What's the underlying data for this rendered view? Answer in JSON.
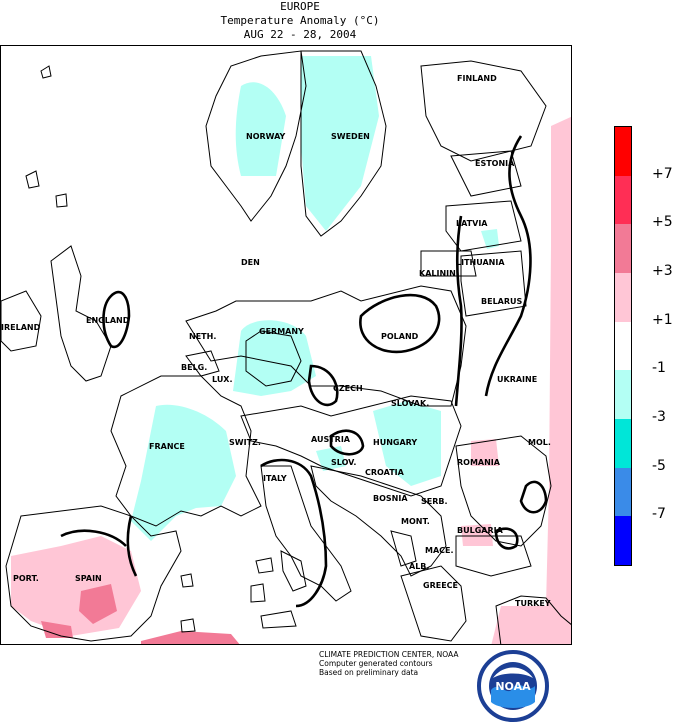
{
  "header": {
    "region": "EUROPE",
    "subtitle": "Temperature Anomaly (°C)",
    "dates": "AUG 22 - 28, 2004"
  },
  "map": {
    "countries": [
      {
        "key": "finland",
        "name": "FINLAND"
      },
      {
        "key": "norway",
        "name": "NORWAY"
      },
      {
        "key": "sweden",
        "name": "SWEDEN"
      },
      {
        "key": "estonia",
        "name": "ESTONIA"
      },
      {
        "key": "latvia",
        "name": "LATVIA"
      },
      {
        "key": "den",
        "name": "DEN"
      },
      {
        "key": "kalinin",
        "name": "KALININ"
      },
      {
        "key": "lithuania",
        "name": "LITHUANIA"
      },
      {
        "key": "ireland",
        "name": "IRELAND"
      },
      {
        "key": "england",
        "name": "ENGLAND"
      },
      {
        "key": "belarus",
        "name": "BELARUS"
      },
      {
        "key": "neth",
        "name": "NETH."
      },
      {
        "key": "germany",
        "name": "GERMANY"
      },
      {
        "key": "poland",
        "name": "POLAND"
      },
      {
        "key": "belg",
        "name": "BELG."
      },
      {
        "key": "lux",
        "name": "LUX."
      },
      {
        "key": "czech",
        "name": "CZECH"
      },
      {
        "key": "ukraine",
        "name": "UKRAINE"
      },
      {
        "key": "slovak",
        "name": "SLOVAK."
      },
      {
        "key": "france",
        "name": "FRANCE"
      },
      {
        "key": "switz",
        "name": "SWITZ."
      },
      {
        "key": "austria",
        "name": "AUSTRIA"
      },
      {
        "key": "hungary",
        "name": "HUNGARY"
      },
      {
        "key": "mol",
        "name": "MOL."
      },
      {
        "key": "romania",
        "name": "ROMANIA"
      },
      {
        "key": "sloven",
        "name": "SLOV."
      },
      {
        "key": "croatia",
        "name": "CROATIA"
      },
      {
        "key": "italy",
        "name": "ITALY"
      },
      {
        "key": "bosnia",
        "name": "BOSNIA"
      },
      {
        "key": "serb",
        "name": "SERB."
      },
      {
        "key": "mont",
        "name": "MONT."
      },
      {
        "key": "bulgaria",
        "name": "BULGARIA"
      },
      {
        "key": "mace",
        "name": "MACE."
      },
      {
        "key": "alb",
        "name": "ALB."
      },
      {
        "key": "port",
        "name": "PORT."
      },
      {
        "key": "spain",
        "name": "SPAIN"
      },
      {
        "key": "greece",
        "name": "GREECE"
      },
      {
        "key": "turkey",
        "name": "TURKEY"
      }
    ]
  },
  "legend": {
    "colors": [
      "#ff0000",
      "#ff2e55",
      "#f27a96",
      "#ffc6d6",
      "#ffffff",
      "#b3fff4",
      "#00e6d8",
      "#3a8be8",
      "#0000ff"
    ],
    "ticks": [
      "+7",
      "+5",
      "+3",
      "+1",
      "-1",
      "-3",
      "-5",
      "-7"
    ]
  },
  "credits": {
    "line1": "CLIMATE PREDICTION CENTER, NOAA",
    "line2": "Computer generated contours",
    "line3": "Based on preliminary data"
  },
  "logo": {
    "text": "NOAA",
    "icon": "noaa-logo-icon"
  }
}
